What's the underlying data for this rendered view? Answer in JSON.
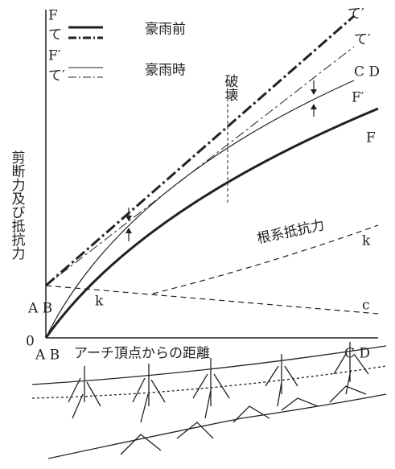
{
  "legend": [
    {
      "symbol": "F",
      "label": "豪雨前"
    },
    {
      "symbol": "て"
    },
    {
      "symbol": "F′",
      "label": "豪雨時"
    },
    {
      "symbol": "て′"
    }
  ],
  "annotation": "破壊",
  "y_axis_label": "剪断力及び抵抗力",
  "x_axis_label": "アーチ頂点からの距離",
  "origin": "0",
  "curve_labels": {
    "tau_before": "て′",
    "tau_during": "て′",
    "cd_end": "C D",
    "f_during": "F′",
    "f_before": "F",
    "root": "根系抵抗力",
    "k_end": "k",
    "c_end": "c",
    "ab_start": "A B",
    "k_start": "k"
  },
  "x_axis_points": {
    "start": "A B",
    "end": "C D"
  }
}
